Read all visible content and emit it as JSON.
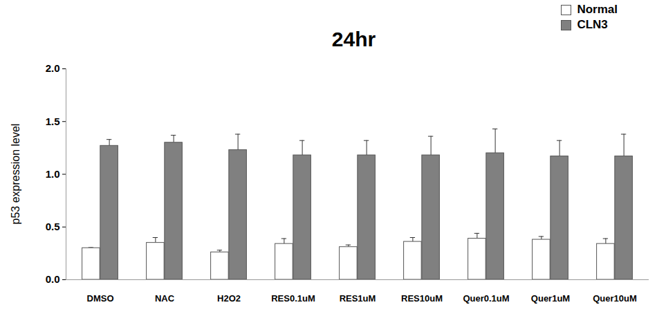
{
  "chart_data": {
    "type": "bar",
    "title": "24hr",
    "y_label": "p53 expression level",
    "categories": [
      "DMSO",
      "NAC",
      "H2O2",
      "RES0.1uM",
      "RES1uM",
      "RES10uM",
      "Quer0.1uM",
      "Quer1uM",
      "Quer10uM"
    ],
    "series": [
      {
        "name": "Normal",
        "color": "#ffffff",
        "values": [
          0.3,
          0.35,
          0.26,
          0.34,
          0.31,
          0.36,
          0.39,
          0.38,
          0.34
        ],
        "errors": [
          0.005,
          0.05,
          0.02,
          0.05,
          0.02,
          0.04,
          0.05,
          0.03,
          0.05
        ]
      },
      {
        "name": "CLN3",
        "color": "#808080",
        "values": [
          1.27,
          1.3,
          1.23,
          1.18,
          1.18,
          1.18,
          1.2,
          1.17,
          1.17
        ],
        "errors": [
          0.06,
          0.07,
          0.15,
          0.14,
          0.14,
          0.18,
          0.23,
          0.15,
          0.21
        ]
      }
    ],
    "ylim": [
      0,
      2
    ],
    "yticks": [
      0,
      0.5,
      1,
      1.5,
      2
    ],
    "grid": false,
    "legend": "top-right"
  }
}
